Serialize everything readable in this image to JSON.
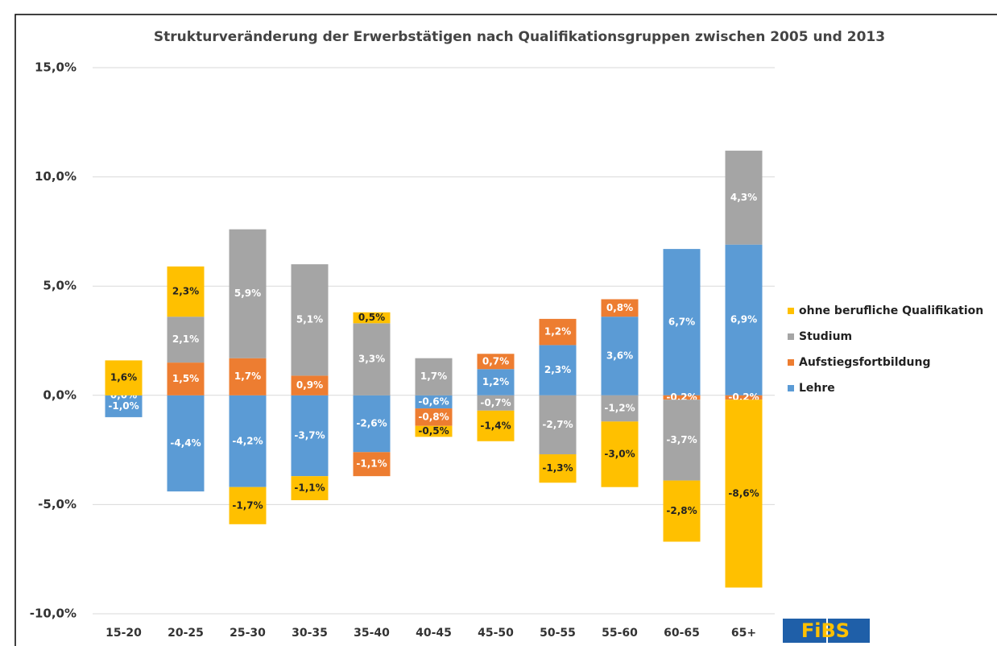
{
  "chart_data": {
    "type": "bar",
    "stacked": true,
    "title": "Strukturveränderung der Erwerbstätigen nach Qualifikationsgruppen zwischen 2005 und 2013",
    "categories": [
      "15-20",
      "20-25",
      "25-30",
      "30-35",
      "35-40",
      "40-45",
      "45-50",
      "50-55",
      "55-60",
      "60-65",
      "65+"
    ],
    "series": [
      {
        "name": "Lehre",
        "color": "#5b9bd5",
        "values": [
          -1.0,
          -4.4,
          -4.2,
          -3.7,
          -2.6,
          -0.6,
          1.2,
          2.3,
          3.6,
          6.7,
          6.9
        ],
        "value_labels": [
          "-1,0%",
          "-4,4%",
          "-4,2%",
          "-3,7%",
          "-2,6%",
          "-0,6%",
          "1,2%",
          "2,3%",
          "3,6%",
          "6,7%",
          "6,9%"
        ]
      },
      {
        "name": "Aufstiegsfortbildung",
        "color": "#ed7d31",
        "values": [
          0,
          1.5,
          1.7,
          0.9,
          -1.1,
          -0.8,
          0.7,
          1.2,
          0.8,
          -0.2,
          -0.2
        ],
        "value_labels": [
          null,
          "1,5%",
          "1,7%",
          "0,9%",
          "-1,1%",
          "-0,8%",
          "0,7%",
          "1,2%",
          "0,8%",
          "-0,2%",
          "-0,2%"
        ]
      },
      {
        "name": "Studium",
        "color": "#a5a5a5",
        "values": [
          0.0,
          2.1,
          5.9,
          5.1,
          3.3,
          1.7,
          -0.7,
          -2.7,
          -1.2,
          -3.7,
          4.3
        ],
        "value_labels": [
          "0,0%",
          "2,1%",
          "5,9%",
          "5,1%",
          "3,3%",
          "1,7%",
          "-0,7%",
          "-2,7%",
          "-1,2%",
          "-3,7%",
          "4,3%"
        ]
      },
      {
        "name": "ohne berufliche Qualifikation",
        "color": "#ffc000",
        "values": [
          1.6,
          2.3,
          -1.7,
          -1.1,
          0.5,
          -0.5,
          -1.4,
          -1.3,
          -3.0,
          -2.8,
          -8.6
        ],
        "value_labels": [
          "1,6%",
          "2,3%",
          "-1,7%",
          "-1,1%",
          "0,5%",
          "-0,5%",
          "-1,4%",
          "-1,3%",
          "-3,0%",
          "-2,8%",
          "-8,6%"
        ]
      }
    ],
    "ylim": [
      -10,
      15
    ],
    "yticks": [
      {
        "value": -10,
        "label": "-10,0%"
      },
      {
        "value": -5,
        "label": "-5,0%"
      },
      {
        "value": 0,
        "label": "0,0%"
      },
      {
        "value": 5,
        "label": "5,0%"
      },
      {
        "value": 10,
        "label": "10,0%"
      },
      {
        "value": 15,
        "label": "15,0%"
      }
    ],
    "grid": true,
    "legend": "right",
    "logo": "FiBS"
  }
}
